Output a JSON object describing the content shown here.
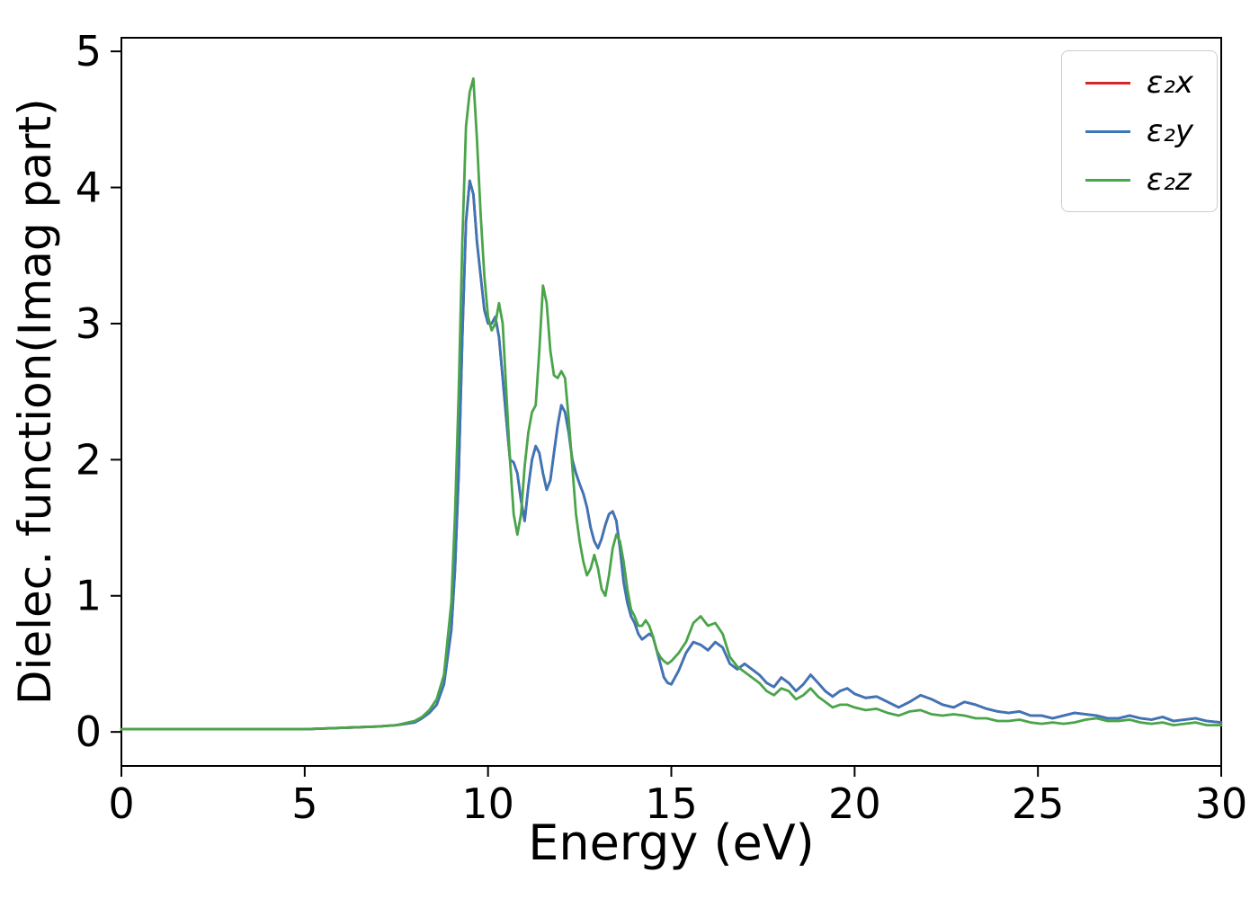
{
  "chart_data": {
    "type": "line",
    "title": "",
    "xlabel": "Energy (eV)",
    "ylabel": "Dielec. function(Imag part)",
    "xlim": [
      0,
      30
    ],
    "ylim": [
      -0.25,
      5.1
    ],
    "xticks": [
      0,
      5,
      10,
      15,
      20,
      25,
      30
    ],
    "yticks": [
      0,
      1,
      2,
      3,
      4,
      5
    ],
    "grid": false,
    "legend_position": "upper right",
    "background_color": "#ffffff",
    "spine_color": "#000000",
    "x": [
      0,
      1,
      2,
      3,
      4,
      5,
      6,
      7,
      7.5,
      8,
      8.2,
      8.4,
      8.6,
      8.8,
      9,
      9.1,
      9.2,
      9.3,
      9.4,
      9.5,
      9.6,
      9.7,
      9.8,
      9.9,
      10,
      10.1,
      10.2,
      10.3,
      10.4,
      10.5,
      10.6,
      10.7,
      10.8,
      10.9,
      11,
      11.1,
      11.2,
      11.3,
      11.4,
      11.5,
      11.6,
      11.7,
      11.8,
      11.9,
      12,
      12.1,
      12.2,
      12.3,
      12.4,
      12.5,
      12.6,
      12.7,
      12.8,
      12.9,
      13,
      13.1,
      13.2,
      13.3,
      13.4,
      13.5,
      13.6,
      13.7,
      13.8,
      13.9,
      14,
      14.1,
      14.2,
      14.3,
      14.4,
      14.5,
      14.6,
      14.7,
      14.8,
      14.9,
      15,
      15.2,
      15.4,
      15.6,
      15.8,
      16,
      16.2,
      16.4,
      16.6,
      16.8,
      17,
      17.2,
      17.4,
      17.6,
      17.8,
      18,
      18.2,
      18.4,
      18.6,
      18.8,
      19,
      19.2,
      19.4,
      19.6,
      19.8,
      20,
      20.3,
      20.6,
      20.9,
      21.2,
      21.5,
      21.8,
      22.1,
      22.4,
      22.7,
      23,
      23.3,
      23.6,
      23.9,
      24.2,
      24.5,
      24.8,
      25.1,
      25.4,
      25.7,
      26,
      26.3,
      26.6,
      26.9,
      27.2,
      27.5,
      27.8,
      28.1,
      28.4,
      28.7,
      29,
      29.3,
      29.6,
      30
    ],
    "series": [
      {
        "name": "ε₂x",
        "color": "#d62728",
        "values": [
          0.02,
          0.02,
          0.02,
          0.02,
          0.02,
          0.02,
          0.03,
          0.04,
          0.05,
          0.07,
          0.1,
          0.14,
          0.2,
          0.35,
          0.75,
          1.2,
          1.9,
          2.9,
          3.75,
          4.05,
          3.95,
          3.6,
          3.35,
          3.1,
          3.0,
          3.0,
          3.05,
          2.9,
          2.6,
          2.3,
          2.0,
          1.98,
          1.9,
          1.7,
          1.55,
          1.8,
          2.0,
          2.1,
          2.05,
          1.9,
          1.78,
          1.85,
          2.05,
          2.25,
          2.4,
          2.35,
          2.2,
          2.0,
          1.9,
          1.82,
          1.75,
          1.65,
          1.5,
          1.4,
          1.35,
          1.42,
          1.52,
          1.6,
          1.62,
          1.55,
          1.35,
          1.1,
          0.95,
          0.85,
          0.8,
          0.72,
          0.68,
          0.7,
          0.72,
          0.7,
          0.6,
          0.5,
          0.4,
          0.36,
          0.35,
          0.45,
          0.58,
          0.66,
          0.64,
          0.6,
          0.66,
          0.62,
          0.5,
          0.46,
          0.5,
          0.46,
          0.42,
          0.36,
          0.33,
          0.4,
          0.36,
          0.3,
          0.35,
          0.42,
          0.36,
          0.3,
          0.26,
          0.3,
          0.32,
          0.28,
          0.25,
          0.26,
          0.22,
          0.18,
          0.22,
          0.27,
          0.24,
          0.2,
          0.18,
          0.22,
          0.2,
          0.17,
          0.15,
          0.14,
          0.15,
          0.12,
          0.12,
          0.1,
          0.12,
          0.14,
          0.13,
          0.12,
          0.1,
          0.1,
          0.12,
          0.1,
          0.09,
          0.11,
          0.08,
          0.09,
          0.1,
          0.08,
          0.07
        ]
      },
      {
        "name": "ε₂y",
        "color": "#3b76b8",
        "values": [
          0.02,
          0.02,
          0.02,
          0.02,
          0.02,
          0.02,
          0.03,
          0.04,
          0.05,
          0.07,
          0.1,
          0.14,
          0.2,
          0.35,
          0.75,
          1.2,
          1.9,
          2.9,
          3.75,
          4.05,
          3.95,
          3.6,
          3.35,
          3.1,
          3.0,
          3.0,
          3.05,
          2.9,
          2.6,
          2.3,
          2.0,
          1.98,
          1.9,
          1.7,
          1.55,
          1.8,
          2.0,
          2.1,
          2.05,
          1.9,
          1.78,
          1.85,
          2.05,
          2.25,
          2.4,
          2.35,
          2.2,
          2.0,
          1.9,
          1.82,
          1.75,
          1.65,
          1.5,
          1.4,
          1.35,
          1.42,
          1.52,
          1.6,
          1.62,
          1.55,
          1.35,
          1.1,
          0.95,
          0.85,
          0.8,
          0.72,
          0.68,
          0.7,
          0.72,
          0.7,
          0.6,
          0.5,
          0.4,
          0.36,
          0.35,
          0.45,
          0.58,
          0.66,
          0.64,
          0.6,
          0.66,
          0.62,
          0.5,
          0.46,
          0.5,
          0.46,
          0.42,
          0.36,
          0.33,
          0.4,
          0.36,
          0.3,
          0.35,
          0.42,
          0.36,
          0.3,
          0.26,
          0.3,
          0.32,
          0.28,
          0.25,
          0.26,
          0.22,
          0.18,
          0.22,
          0.27,
          0.24,
          0.2,
          0.18,
          0.22,
          0.2,
          0.17,
          0.15,
          0.14,
          0.15,
          0.12,
          0.12,
          0.1,
          0.12,
          0.14,
          0.13,
          0.12,
          0.1,
          0.1,
          0.12,
          0.1,
          0.09,
          0.11,
          0.08,
          0.09,
          0.1,
          0.08,
          0.07
        ]
      },
      {
        "name": "ε₂z",
        "color": "#4aa44a",
        "values": [
          0.02,
          0.02,
          0.02,
          0.02,
          0.02,
          0.02,
          0.03,
          0.04,
          0.05,
          0.08,
          0.11,
          0.16,
          0.24,
          0.42,
          0.95,
          1.6,
          2.5,
          3.6,
          4.45,
          4.7,
          4.8,
          4.35,
          3.8,
          3.35,
          3.05,
          2.95,
          3.0,
          3.15,
          3.0,
          2.5,
          2.0,
          1.6,
          1.45,
          1.6,
          1.95,
          2.2,
          2.35,
          2.4,
          2.8,
          3.28,
          3.15,
          2.8,
          2.62,
          2.6,
          2.65,
          2.6,
          2.3,
          1.95,
          1.6,
          1.4,
          1.25,
          1.15,
          1.2,
          1.3,
          1.2,
          1.05,
          1.0,
          1.15,
          1.35,
          1.45,
          1.4,
          1.25,
          1.05,
          0.9,
          0.85,
          0.78,
          0.78,
          0.82,
          0.78,
          0.7,
          0.6,
          0.55,
          0.52,
          0.5,
          0.52,
          0.58,
          0.66,
          0.8,
          0.85,
          0.78,
          0.8,
          0.72,
          0.55,
          0.48,
          0.44,
          0.4,
          0.36,
          0.3,
          0.27,
          0.32,
          0.3,
          0.24,
          0.27,
          0.32,
          0.26,
          0.22,
          0.18,
          0.2,
          0.2,
          0.18,
          0.16,
          0.17,
          0.14,
          0.12,
          0.15,
          0.16,
          0.13,
          0.12,
          0.13,
          0.12,
          0.1,
          0.1,
          0.08,
          0.08,
          0.09,
          0.07,
          0.06,
          0.07,
          0.06,
          0.07,
          0.09,
          0.1,
          0.08,
          0.08,
          0.09,
          0.07,
          0.06,
          0.07,
          0.05,
          0.06,
          0.07,
          0.05,
          0.05
        ]
      }
    ]
  }
}
